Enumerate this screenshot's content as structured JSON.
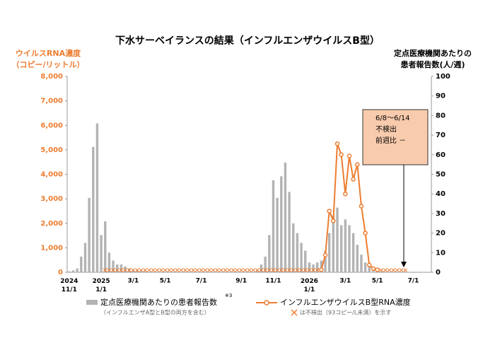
{
  "chart_data": {
    "type": "combo",
    "title": "下水サーベイランスの結果（インフルエンザウイルスB型）",
    "ylabel": [
      "ウイルスRNA濃度",
      "（コピー/リットル）"
    ],
    "y2label": [
      "定点医療機関あたりの",
      "患者報告数(人/週)"
    ],
    "categories": [
      "2024\n11/1",
      null,
      null,
      null,
      null,
      null,
      null,
      null,
      "2025\n1/1",
      null,
      null,
      null,
      null,
      null,
      null,
      null,
      "3/1",
      null,
      null,
      null,
      null,
      null,
      null,
      null,
      "5/1",
      null,
      null,
      null,
      null,
      null,
      null,
      null,
      null,
      "7/1",
      null,
      null,
      null,
      null,
      null,
      null,
      null,
      null,
      null,
      "9/1",
      null,
      null,
      null,
      null,
      null,
      null,
      null,
      "11/1",
      null,
      null,
      null,
      null,
      null,
      null,
      null,
      null,
      "2026\n1/1",
      null,
      null,
      null,
      null,
      null,
      null,
      null,
      null,
      "3/1",
      null,
      null,
      null,
      null,
      null,
      null,
      null,
      "5/1",
      null,
      null,
      null,
      null,
      null,
      null,
      null,
      null,
      "7/1",
      null,
      null,
      null,
      null
    ],
    "series": [
      {
        "name": "定点医療機関あたりの患者報告数",
        "note_mark": "※3",
        "note": "（インフルエンザA型とB型の両方を含む）",
        "type": "bar",
        "axis": "y2",
        "color": "#b3b3b3",
        "values": [
          0.5,
          1,
          2,
          8,
          15,
          38,
          64,
          76,
          19,
          26,
          10,
          6,
          4,
          4,
          3,
          2,
          1,
          1,
          0.5,
          0.5,
          0,
          0,
          0,
          0,
          0,
          0,
          0,
          0,
          0,
          0,
          0,
          0,
          0,
          0,
          0,
          0,
          0,
          0,
          0,
          0,
          0,
          0,
          0,
          0,
          0,
          0,
          0,
          1,
          4,
          8,
          19,
          47,
          38,
          49,
          56,
          41,
          25,
          20,
          15,
          11,
          5,
          4,
          5,
          6,
          11,
          20,
          29,
          33,
          24,
          27,
          24,
          20,
          14,
          9,
          5,
          3,
          1,
          1,
          0.5,
          0,
          0,
          0,
          0,
          0,
          0,
          null,
          null,
          null,
          null,
          null,
          null
        ]
      },
      {
        "name": "インフルエンザウイルスB型RNA濃度",
        "type": "line",
        "axis": "y",
        "color": "#ed7d31",
        "values": [
          null,
          null,
          null,
          null,
          null,
          null,
          null,
          null,
          null,
          null,
          null,
          null,
          null,
          null,
          null,
          null,
          null,
          null,
          null,
          null,
          null,
          null,
          null,
          null,
          null,
          null,
          null,
          null,
          null,
          null,
          null,
          null,
          null,
          null,
          null,
          null,
          null,
          null,
          null,
          null,
          null,
          null,
          null,
          null,
          null,
          null,
          null,
          null,
          null,
          null,
          null,
          null,
          null,
          null,
          null,
          null,
          null,
          null,
          null,
          null,
          null,
          null,
          null,
          100,
          700,
          2500,
          2100,
          5250,
          4800,
          3200,
          4750,
          3800,
          4400,
          2700,
          1600,
          300,
          150,
          100,
          null,
          null,
          null,
          null,
          null,
          null,
          null,
          null,
          null,
          null,
          null,
          null,
          null
        ]
      },
      {
        "name": "は不検出（93コピー/L未満）を示す",
        "type": "nd",
        "axis": "y",
        "color": "#ed7d31",
        "values": [
          null,
          null,
          null,
          null,
          null,
          null,
          null,
          null,
          null,
          0,
          0,
          0,
          0,
          0,
          0,
          0,
          0,
          0,
          0,
          0,
          0,
          0,
          0,
          0,
          0,
          0,
          0,
          0,
          0,
          0,
          0,
          0,
          0,
          0,
          0,
          0,
          0,
          0,
          0,
          0,
          0,
          0,
          0,
          0,
          0,
          0,
          0,
          0,
          0,
          0,
          0,
          0,
          0,
          0,
          0,
          0,
          0,
          0,
          0,
          0,
          0,
          0,
          0,
          null,
          null,
          null,
          null,
          null,
          null,
          null,
          null,
          null,
          null,
          null,
          null,
          null,
          null,
          null,
          0,
          0,
          0,
          0,
          0,
          0,
          0,
          null,
          null,
          null,
          null,
          null,
          null
        ]
      }
    ],
    "ylim": [
      0,
      8000
    ],
    "yticks": [
      0,
      {
        "value": 1000,
        "label": "1,000"
      },
      {
        "value": 2000,
        "label": "2,000"
      },
      {
        "value": 3000,
        "label": "3,000"
      },
      {
        "value": 4000,
        "label": "4,000"
      },
      {
        "value": 5000,
        "label": "5,000"
      },
      {
        "value": 6000,
        "label": "6,000"
      },
      {
        "value": 7000,
        "label": "7,000"
      },
      {
        "value": 8000,
        "label": "8,000"
      }
    ],
    "y2lim": [
      0,
      100
    ],
    "y2ticks": [
      0,
      10,
      20,
      30,
      40,
      50,
      60,
      70,
      80,
      90,
      100
    ],
    "annotation": [
      "6/8～6/14",
      "不検出",
      "前週比 －"
    ]
  }
}
